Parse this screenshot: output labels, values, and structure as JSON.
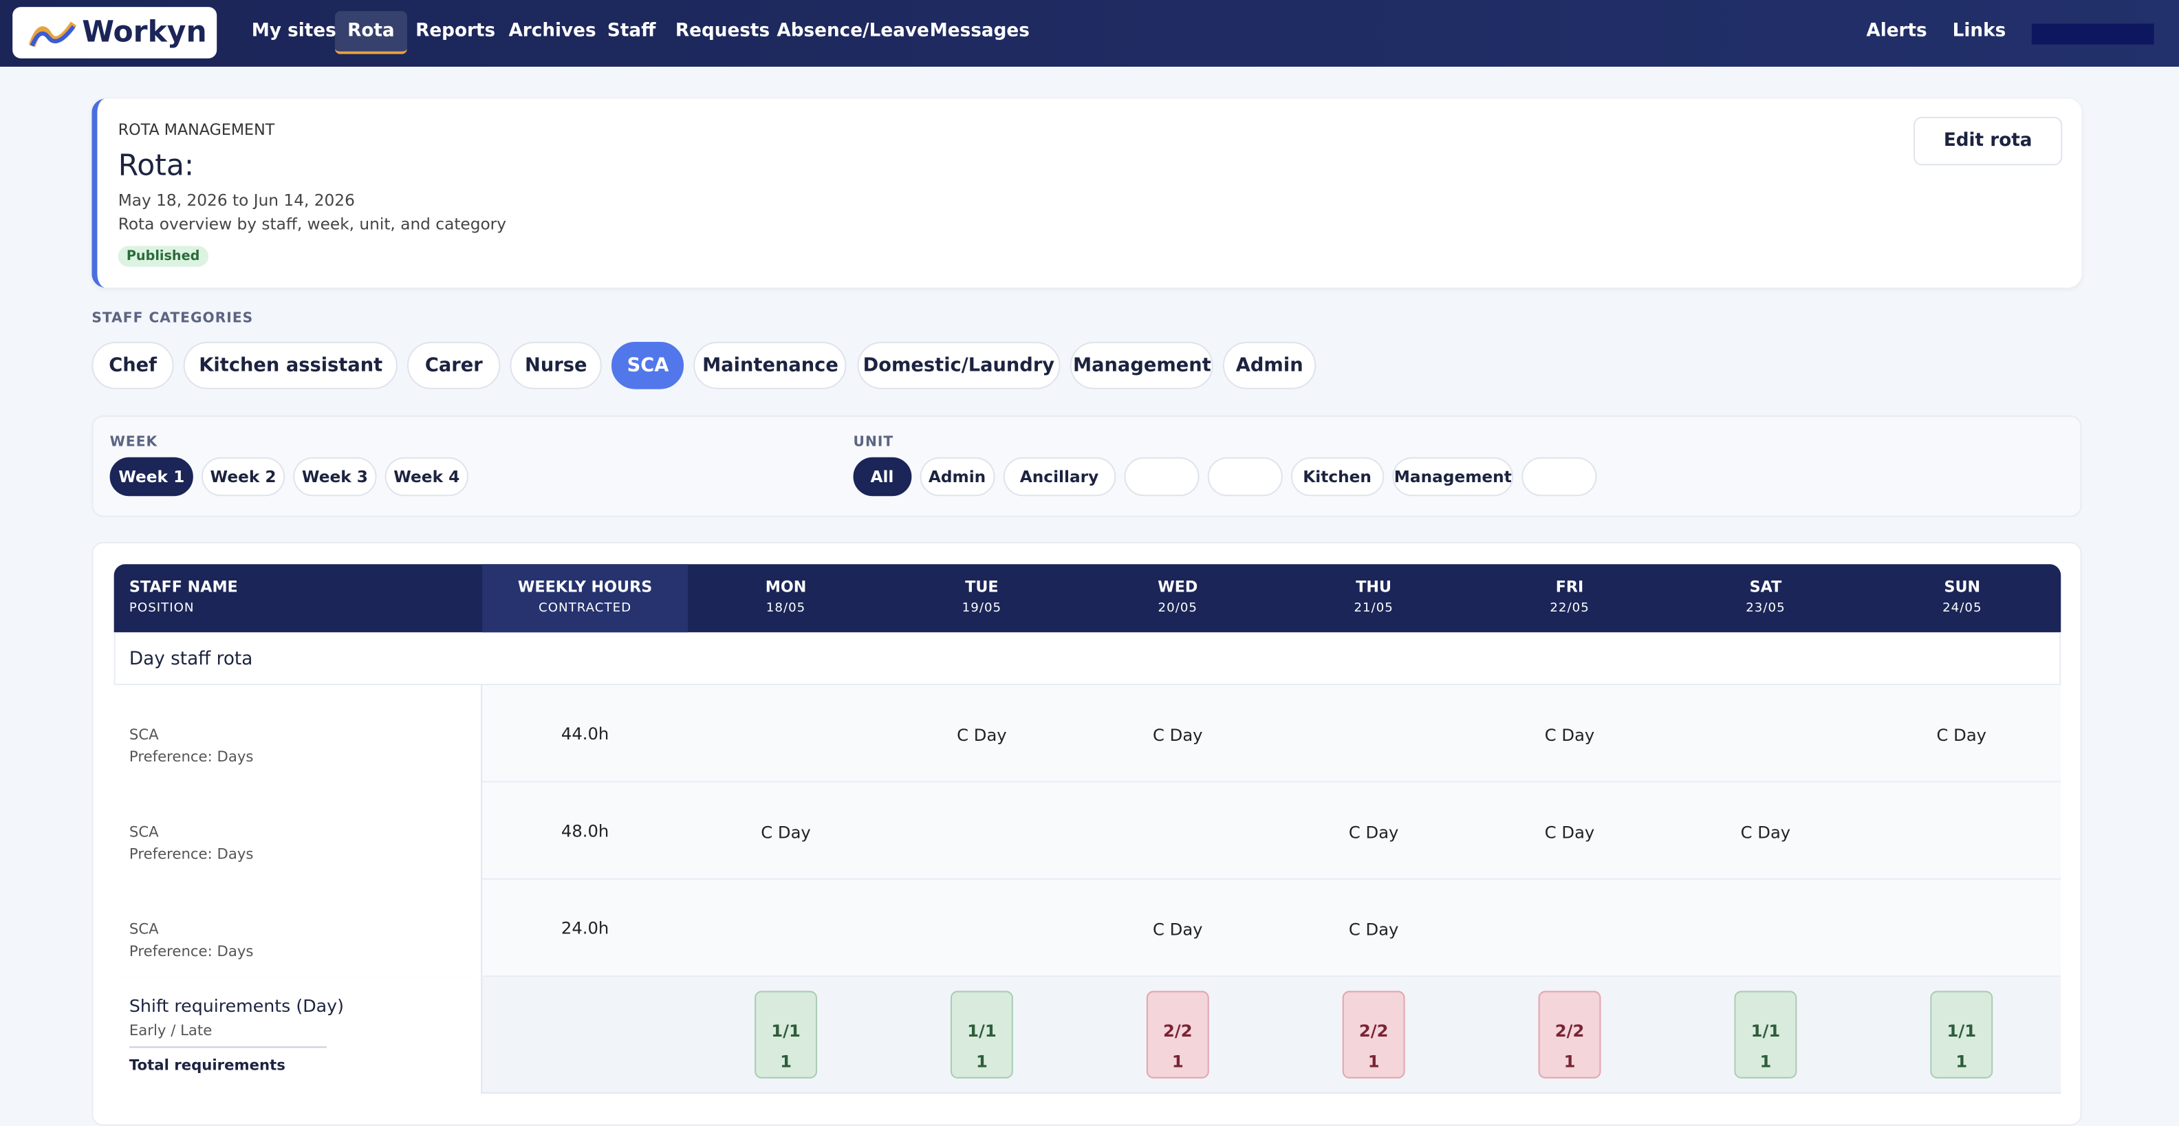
{
  "nav": {
    "logo": "Workyn",
    "items": [
      "My sites",
      "Rota",
      "Reports",
      "Archives",
      "Staff",
      "Requests",
      "Absence/Leave",
      "Messages"
    ],
    "active": 1,
    "right": [
      "Alerts",
      "Links"
    ]
  },
  "header": {
    "eyebrow": "ROTA MANAGEMENT",
    "title": "Rota:",
    "dates": "May 18, 2026 to Jun 14, 2026",
    "description": "Rota overview by staff, week, unit, and category",
    "status": "Published",
    "edit_button": "Edit rota"
  },
  "categories": {
    "label": "STAFF CATEGORIES",
    "items": [
      "Chef",
      "Kitchen assistant",
      "Carer",
      "Nurse",
      "SCA",
      "Maintenance",
      "Domestic/Laundry",
      "Management",
      "Admin"
    ],
    "active": 4
  },
  "weeks": {
    "label": "WEEK",
    "items": [
      "Week 1",
      "Week 2",
      "Week 3",
      "Week 4"
    ],
    "active": 0
  },
  "units": {
    "label": "UNIT",
    "items": [
      "All",
      "Admin",
      "Ancillary",
      null,
      null,
      "Kitchen",
      "Management",
      null
    ],
    "active": 0
  },
  "table": {
    "columns": [
      {
        "title": "STAFF NAME",
        "sub": "POSITION"
      },
      {
        "title": "WEEKLY HOURS",
        "sub": "CONTRACTED"
      },
      {
        "title": "MON",
        "sub": "18/05"
      },
      {
        "title": "TUE",
        "sub": "19/05"
      },
      {
        "title": "WED",
        "sub": "20/05"
      },
      {
        "title": "THU",
        "sub": "21/05"
      },
      {
        "title": "FRI",
        "sub": "22/05"
      },
      {
        "title": "SAT",
        "sub": "23/05"
      },
      {
        "title": "SUN",
        "sub": "24/05"
      }
    ],
    "section": "Day staff rota",
    "rows": [
      {
        "position": "SCA",
        "preference": "Preference: Days",
        "hours": "44.0h",
        "shifts": [
          null,
          "C Day",
          "C Day",
          null,
          "C Day",
          null,
          "C Day"
        ]
      },
      {
        "position": "SCA",
        "preference": "Preference: Days",
        "hours": "48.0h",
        "shifts": [
          "C Day",
          null,
          null,
          "C Day",
          "C Day",
          "C Day",
          null
        ]
      },
      {
        "position": "SCA",
        "preference": "Preference: Days",
        "hours": "24.0h",
        "shifts": [
          null,
          null,
          "C Day",
          "C Day",
          null,
          null,
          null
        ]
      }
    ],
    "requirements": {
      "title": "Shift requirements (Day)",
      "subtitle": "Early / Late",
      "total_label": "Total requirements",
      "cells": [
        {
          "ratio": "1/1",
          "total": "1",
          "status": "met"
        },
        {
          "ratio": "1/1",
          "total": "1",
          "status": "met"
        },
        {
          "ratio": "2/2",
          "total": "1",
          "status": "short"
        },
        {
          "ratio": "2/2",
          "total": "1",
          "status": "short"
        },
        {
          "ratio": "2/2",
          "total": "1",
          "status": "short"
        },
        {
          "ratio": "1/1",
          "total": "1",
          "status": "met"
        },
        {
          "ratio": "1/1",
          "total": "1",
          "status": "met"
        }
      ]
    }
  }
}
